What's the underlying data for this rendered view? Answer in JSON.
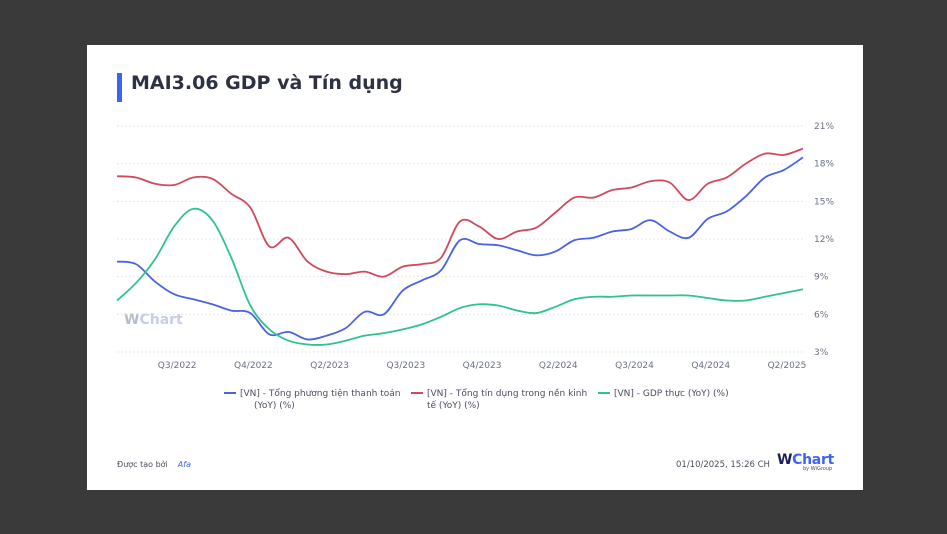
{
  "title": "MAI3.06 GDP và Tín dụng",
  "watermark": {
    "w": "W",
    "rest": "Chart"
  },
  "footer": {
    "created_by_label": "Được tạo bởi",
    "author": "Afa",
    "timestamp": "01/10/2025, 15:26 CH",
    "logo_w": "W",
    "logo_rest": "Chart",
    "logo_sub": "by WiGroup"
  },
  "chart_data": {
    "type": "line",
    "title": "MAI3.06 GDP và Tín dụng",
    "xlabel": "",
    "ylabel": "",
    "y_axis_position": "right",
    "ylim": [
      3,
      21
    ],
    "yticks": [
      3,
      6,
      9,
      12,
      15,
      18,
      21
    ],
    "ytick_labels": [
      "3%",
      "6%",
      "9%",
      "12%",
      "15%",
      "18%",
      "21%"
    ],
    "grid": true,
    "legend_position": "bottom",
    "x_tick_labels": [
      {
        "index": 3,
        "label": "Q3/2022"
      },
      {
        "index": 7,
        "label": "Q4/2022"
      },
      {
        "index": 11,
        "label": "Q2/2023"
      },
      {
        "index": 15,
        "label": "Q3/2023"
      },
      {
        "index": 19,
        "label": "Q4/2023"
      },
      {
        "index": 23,
        "label": "Q2/2024"
      },
      {
        "index": 27,
        "label": "Q3/2024"
      },
      {
        "index": 31,
        "label": "Q4/2024"
      },
      {
        "index": 35,
        "label": "Q2/2025"
      }
    ],
    "x_count": 37,
    "series": [
      {
        "name": "[VN] - Tổng phương tiện thanh toán (YoY) (%)",
        "legend_lines": [
          "[VN] - Tổng phương tiện thanh toán",
          "(YoY) (%)"
        ],
        "color": "#4a63e0",
        "values": [
          10.2,
          10.0,
          8.6,
          7.6,
          7.2,
          6.8,
          6.3,
          6.1,
          4.4,
          4.6,
          4.0,
          4.3,
          4.9,
          6.2,
          6.0,
          7.9,
          8.7,
          9.5,
          11.9,
          11.6,
          11.5,
          11.1,
          10.7,
          11.0,
          11.9,
          12.1,
          12.6,
          12.8,
          13.5,
          12.6,
          12.1,
          13.6,
          14.2,
          15.4,
          16.9,
          17.5,
          18.5
        ]
      },
      {
        "name": "[VN] - Tổng tín dụng trong nền kinh tế (YoY) (%)",
        "legend_lines": [
          "[VN] - Tổng tín dụng trong nền kinh",
          "tế (YoY) (%)"
        ],
        "color": "#d0495d",
        "values": [
          17.0,
          16.9,
          16.4,
          16.3,
          16.9,
          16.8,
          15.6,
          14.5,
          11.4,
          12.1,
          10.2,
          9.4,
          9.2,
          9.4,
          9.0,
          9.8,
          10.0,
          10.5,
          13.4,
          13.0,
          12.0,
          12.6,
          12.9,
          14.1,
          15.3,
          15.3,
          15.9,
          16.1,
          16.6,
          16.5,
          15.1,
          16.4,
          16.9,
          18.0,
          18.8,
          18.7,
          19.2
        ]
      },
      {
        "name": "[VN] - GDP thực (YoY) (%)",
        "legend_lines": [
          "[VN] - GDP thực (YoY) (%)"
        ],
        "color": "#2ec48a",
        "values": [
          7.1,
          8.5,
          10.4,
          13.0,
          14.4,
          13.5,
          10.5,
          6.7,
          4.8,
          3.9,
          3.6,
          3.6,
          3.9,
          4.3,
          4.5,
          4.8,
          5.2,
          5.8,
          6.5,
          6.8,
          6.7,
          6.3,
          6.1,
          6.6,
          7.2,
          7.4,
          7.4,
          7.5,
          7.5,
          7.5,
          7.5,
          7.3,
          7.1,
          7.1,
          7.4,
          7.7,
          8.0
        ]
      }
    ]
  }
}
